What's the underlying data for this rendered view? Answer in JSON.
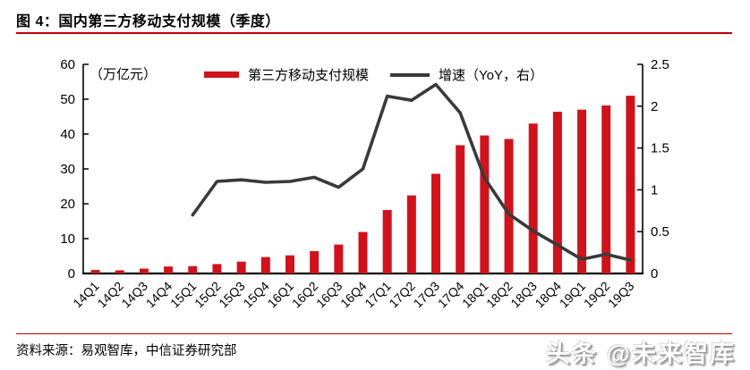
{
  "title": "图 4：国内第三方移动支付规模（季度）",
  "accent_rule_color": "#C00000",
  "footer": {
    "source": "资料来源：易观智库，中信证券研究部"
  },
  "watermark": "头条 @未来智库",
  "chart_data": {
    "type": "bar+line",
    "title": "国内第三方移动支付规模（季度）",
    "unit_label": "（万亿元）",
    "legend_position": "top",
    "grid": false,
    "categories": [
      "14Q1",
      "14Q2",
      "14Q3",
      "14Q4",
      "15Q1",
      "15Q2",
      "15Q3",
      "15Q4",
      "16Q1",
      "16Q2",
      "16Q3",
      "16Q4",
      "17Q1",
      "17Q2",
      "17Q3",
      "17Q4",
      "18Q1",
      "18Q2",
      "18Q3",
      "18Q4",
      "19Q1",
      "19Q2",
      "19Q3"
    ],
    "series": [
      {
        "name": "第三方移动支付规模",
        "type": "bar",
        "axis": "left",
        "color": "#D0121C",
        "values": [
          1.0,
          0.9,
          1.4,
          2.0,
          2.1,
          2.7,
          3.4,
          4.7,
          5.2,
          6.4,
          8.3,
          11.9,
          18.2,
          22.4,
          28.6,
          36.8,
          39.6,
          38.6,
          43.0,
          46.4,
          47.0,
          48.2,
          51.0
        ]
      },
      {
        "name": "增速（YoY，右）",
        "type": "line",
        "axis": "right",
        "color": "#3A3A3A",
        "values": [
          null,
          null,
          null,
          null,
          0.7,
          1.1,
          1.12,
          1.09,
          1.1,
          1.15,
          1.03,
          1.25,
          2.12,
          2.07,
          2.26,
          1.92,
          1.14,
          0.71,
          0.51,
          0.34,
          0.17,
          0.23,
          0.16
        ]
      }
    ],
    "left_axis": {
      "min": 0,
      "max": 60,
      "ticks": [
        "0",
        "10",
        "20",
        "30",
        "40",
        "50",
        "60"
      ]
    },
    "right_axis": {
      "min": 0,
      "max": 2.5,
      "ticks": [
        "0",
        "0.5",
        "1",
        "1.5",
        "2",
        "2.5"
      ]
    }
  }
}
